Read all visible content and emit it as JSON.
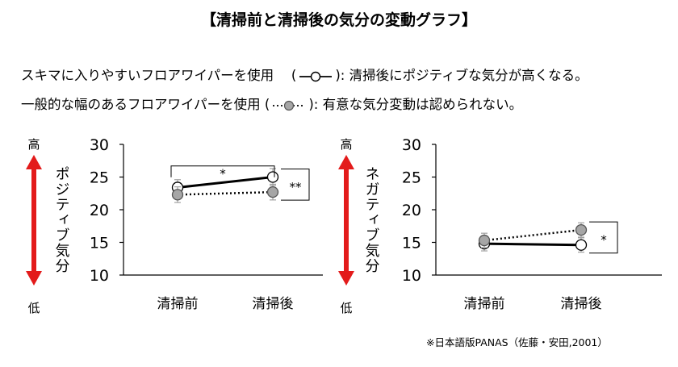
{
  "title": "【清掃前と清掃後の気分の変動グラフ】",
  "legend": [
    {
      "prefix": "スキマに入りやすいフロアワイパーを使用　 (",
      "suffix": "):  清掃後にポジティブな気分が高くなる。",
      "style": "solid",
      "marker_fill": "#ffffff"
    },
    {
      "prefix": "一般的な幅のあるフロアワイパーを使用 (",
      "suffix": "):  有意な気分変動は認められない。",
      "style": "dotted",
      "marker_fill": "#a6a6a6"
    }
  ],
  "source_note": "※日本語版PANAS（佐藤・安田,2001）",
  "colors": {
    "arrow": "#e31b1b",
    "line": "#000000",
    "marker_open": "#ffffff",
    "marker_gray": "#a6a6a6",
    "error_bar": "#a0a0a0"
  },
  "chart_data": [
    {
      "type": "line",
      "ylabel": "ポジティブ気分",
      "axis_high": "高",
      "axis_low": "低",
      "categories": [
        "清掃前",
        "清掃後"
      ],
      "ylim": [
        10,
        30
      ],
      "yticks": [
        10,
        15,
        20,
        25,
        30
      ],
      "series": [
        {
          "style": "solid",
          "marker": "open",
          "values": [
            23.4,
            25.0
          ],
          "errors": [
            1.2,
            1.3
          ]
        },
        {
          "style": "dotted",
          "marker": "gray",
          "values": [
            22.3,
            22.7
          ],
          "errors": [
            1.2,
            1.2
          ]
        }
      ],
      "annotations": [
        {
          "type": "bracket",
          "label": "*",
          "between": [
            "清掃前",
            "清掃後"
          ],
          "at_value": 26.7
        },
        {
          "type": "side-bracket",
          "label": "**",
          "at": "清掃後",
          "range": [
            22.7,
            25.0
          ]
        }
      ]
    },
    {
      "type": "line",
      "ylabel": "ネガティブ気分",
      "axis_high": "高",
      "axis_low": "低",
      "categories": [
        "清掃前",
        "清掃後"
      ],
      "ylim": [
        10,
        30
      ],
      "yticks": [
        10,
        15,
        20,
        25,
        30
      ],
      "series": [
        {
          "style": "solid",
          "marker": "open",
          "values": [
            14.8,
            14.6
          ],
          "errors": [
            1.1,
            1.1
          ]
        },
        {
          "style": "dotted",
          "marker": "gray",
          "values": [
            15.3,
            16.9
          ],
          "errors": [
            1.1,
            1.1
          ]
        }
      ],
      "annotations": [
        {
          "type": "side-bracket",
          "label": "*",
          "at": "清掃後",
          "range": [
            14.6,
            16.9
          ]
        }
      ]
    }
  ]
}
